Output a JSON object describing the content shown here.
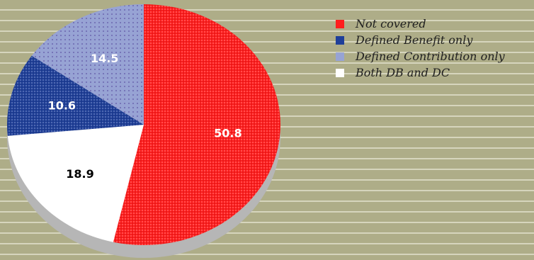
{
  "chart_data": {
    "type": "pie",
    "title": "",
    "slices": [
      {
        "name": "Not covered",
        "value": 50.8,
        "label": "50.8",
        "color": "#ff1d1d",
        "label_color": "#ffffff"
      },
      {
        "name": "Both DB and DC",
        "value": 18.9,
        "label": "18.9",
        "color": "#ffffff",
        "label_color": "#000000"
      },
      {
        "name": "Defined Benefit only",
        "value": 10.6,
        "label": "10.6",
        "color": "#1f3f99",
        "label_color": "#ffffff"
      },
      {
        "name": "Defined Contribution only",
        "value": 14.5,
        "label": "14.5",
        "color": "#97a3d4",
        "label_color": "#ffffff"
      }
    ],
    "legend": {
      "placement": "top-right",
      "entries": [
        "Not covered",
        "Defined Benefit only",
        "Defined Contribution only",
        "Both DB and DC"
      ]
    },
    "start": "top",
    "direction": "clockwise",
    "style": "3d-tilted",
    "edge_color": "#b6b6b6"
  }
}
